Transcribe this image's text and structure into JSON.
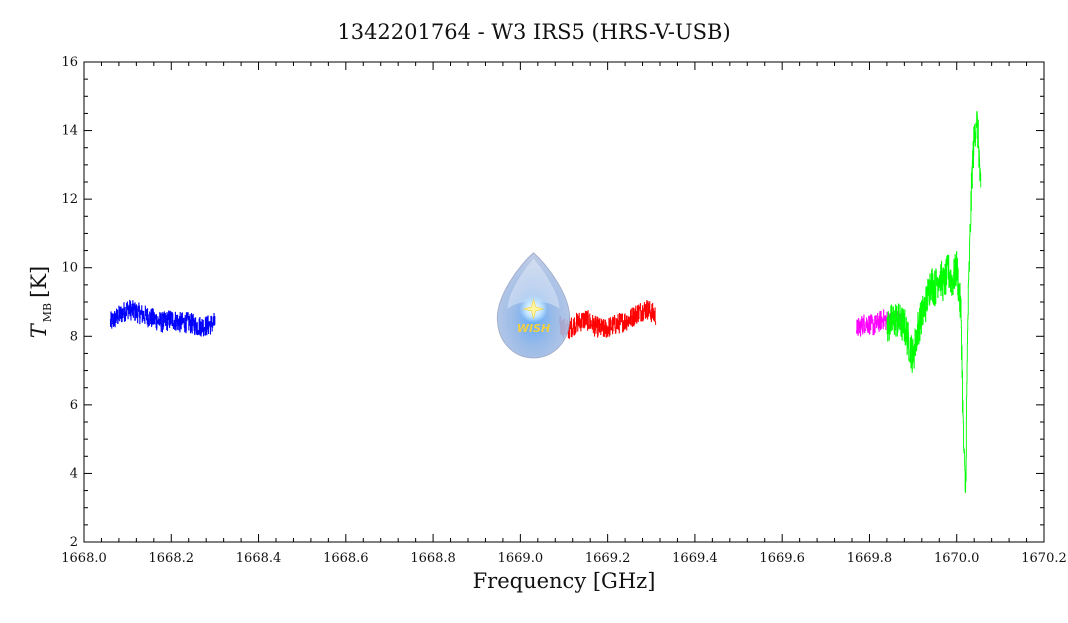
{
  "chart_data": {
    "type": "line",
    "title": "1342201764 - W3 IRS5 (HRS-V-USB)",
    "xlabel": "Frequency [GHz]",
    "ylabel": {
      "symbol": "T",
      "subscript": "MB",
      "unit": "[K]"
    },
    "xlim": [
      1668.0,
      1670.2
    ],
    "ylim": [
      2,
      16
    ],
    "x_ticks": [
      1668.0,
      1668.2,
      1668.4,
      1668.6,
      1668.8,
      1669.0,
      1669.2,
      1669.4,
      1669.6,
      1669.8,
      1670.0,
      1670.2
    ],
    "x_tick_labels": [
      "1668.0",
      "1668.2",
      "1668.4",
      "1668.6",
      "1668.8",
      "1669.0",
      "1669.2",
      "1669.4",
      "1669.6",
      "1669.8",
      "1670.0",
      "1670.2"
    ],
    "y_ticks": [
      2,
      4,
      6,
      8,
      10,
      12,
      14,
      16
    ],
    "y_tick_labels": [
      "2",
      "4",
      "6",
      "8",
      "10",
      "12",
      "14",
      "16"
    ],
    "grid": false,
    "legend": "none",
    "logo": {
      "text": "WISH",
      "x": 1669.03,
      "y": 8.8
    },
    "series": [
      {
        "color": "#0000ff",
        "x": [
          1668.06,
          1668.08,
          1668.1,
          1668.12,
          1668.14,
          1668.16,
          1668.18,
          1668.2,
          1668.22,
          1668.24,
          1668.26,
          1668.28,
          1668.3
        ],
        "y": [
          8.4,
          8.6,
          8.8,
          8.7,
          8.6,
          8.5,
          8.4,
          8.5,
          8.4,
          8.4,
          8.3,
          8.3,
          8.4
        ]
      },
      {
        "color": "#ff0000",
        "x": [
          1669.09,
          1669.11,
          1669.13,
          1669.15,
          1669.17,
          1669.19,
          1669.21,
          1669.23,
          1669.25,
          1669.27,
          1669.29,
          1669.31
        ],
        "y": [
          8.3,
          8.2,
          8.4,
          8.5,
          8.3,
          8.2,
          8.3,
          8.4,
          8.5,
          8.7,
          8.8,
          8.6
        ]
      },
      {
        "color": "#ff00ff",
        "x": [
          1669.77,
          1669.79,
          1669.81,
          1669.83,
          1669.85
        ],
        "y": [
          8.2,
          8.4,
          8.3,
          8.5,
          8.4
        ]
      },
      {
        "color": "#808080",
        "x": [
          1669.84,
          1669.86,
          1669.88
        ],
        "y": [
          8.3,
          8.5,
          8.4
        ]
      },
      {
        "color": "#00ff00",
        "x": [
          1669.84,
          1669.86,
          1669.88,
          1669.89,
          1669.9,
          1669.91,
          1669.92,
          1669.93,
          1669.94,
          1669.95,
          1669.96,
          1669.97,
          1669.98,
          1669.99,
          1670.0,
          1670.01,
          1670.015,
          1670.02,
          1670.025,
          1670.03,
          1670.035,
          1670.04,
          1670.045,
          1670.05,
          1670.055
        ],
        "y": [
          8.3,
          8.5,
          8.3,
          7.8,
          7.4,
          8.2,
          8.6,
          9.0,
          9.6,
          9.4,
          9.8,
          9.5,
          9.9,
          9.6,
          10.0,
          8.6,
          5.0,
          3.4,
          8.4,
          10.8,
          12.8,
          13.8,
          14.4,
          13.6,
          12.0
        ]
      }
    ]
  }
}
